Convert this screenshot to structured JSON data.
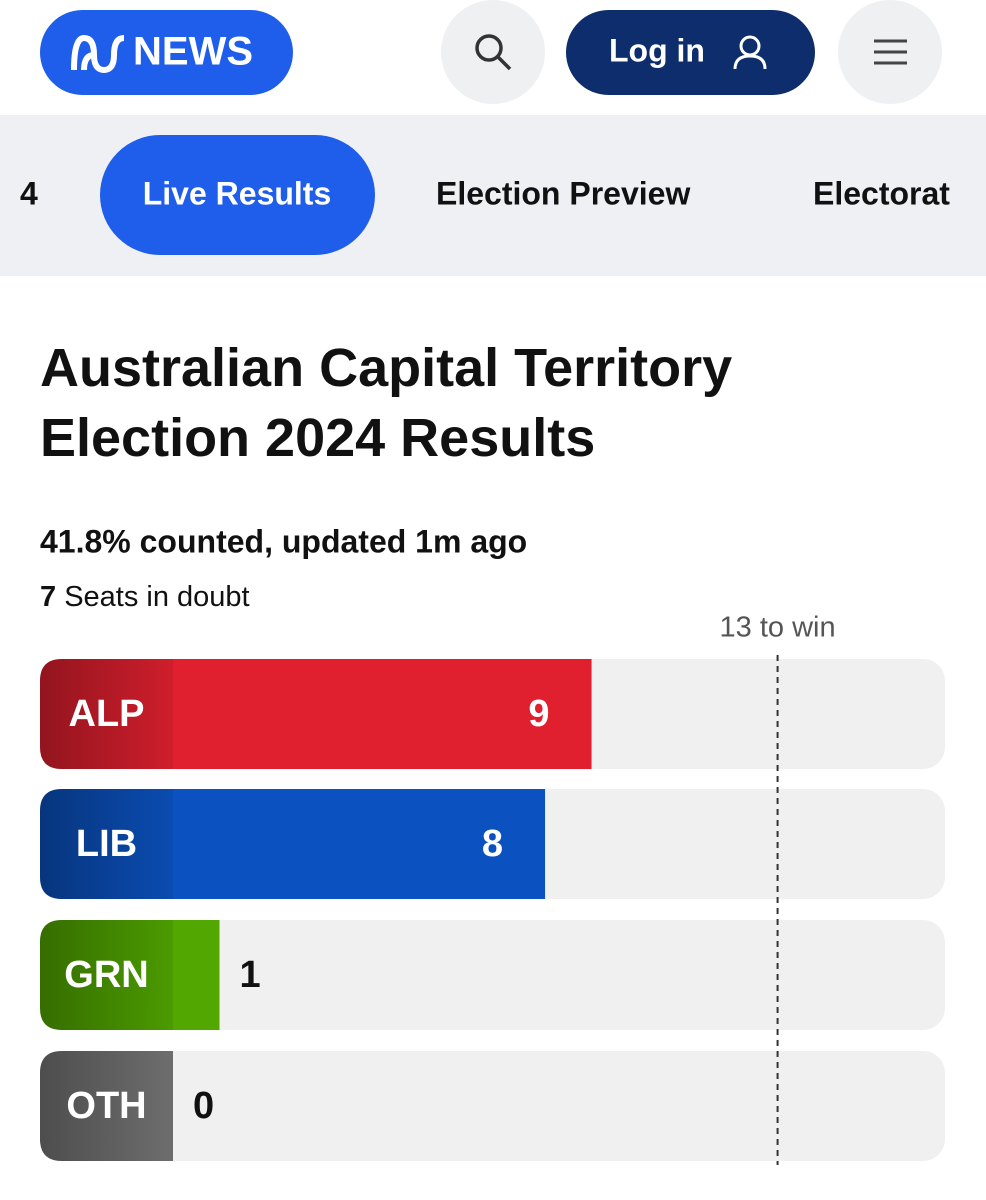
{
  "header": {
    "logo": "NEWS",
    "login": "Log in"
  },
  "nav": [
    "4",
    "Live Results",
    "Election Preview",
    "Electorat"
  ],
  "title": "Australian Capital Territory Election 2024 Results",
  "status": "41.8% counted, updated 1m ago",
  "doubt": {
    "count": "7",
    "text": "Seats in doubt"
  },
  "chart_data": {
    "type": "bar",
    "orientation": "horizontal",
    "categories": [
      "ALP",
      "LIB",
      "GRN",
      "OTH"
    ],
    "values": [
      9,
      8,
      1,
      0
    ],
    "colors": [
      "#e1202f",
      "#0b52c0",
      "#52a800",
      "#777777"
    ],
    "xlim": [
      0,
      16.6
    ],
    "target": {
      "value": 13,
      "label": "13 to win"
    }
  }
}
